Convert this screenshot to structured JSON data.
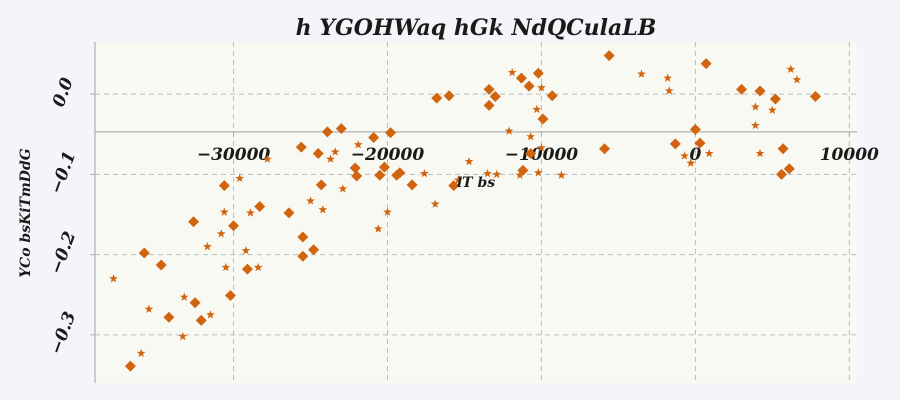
{
  "chart_data": {
    "type": "scatter",
    "title": "h YGOHWaq hGk NdQCulaLB",
    "xlabel": "lT bs",
    "ylabel": "YCo  bsKiTmDdG",
    "xlim": [
      -39000,
      10500
    ],
    "ylim": [
      -0.36,
      0.065
    ],
    "x_ticks": [
      -30000,
      -20000,
      -10000,
      0,
      10000
    ],
    "x_tick_labels": [
      "−30000",
      "−20000",
      "−10000",
      "0",
      "10000"
    ],
    "y_ticks": [
      0.0,
      -0.1,
      -0.2,
      -0.3
    ],
    "y_tick_labels": [
      "0.0",
      "−0.1",
      "−0.2",
      "−0.3"
    ],
    "grid": true,
    "colors": {
      "marker": "#d2640f",
      "plot_bg": "#f8f9f2",
      "page_bg": "#f4f5f9",
      "grid": "#bbbbbb",
      "axis": "#b0b0b0"
    },
    "series": [
      {
        "marker": "diamond",
        "points": [
          [
            -36700,
            -0.339
          ],
          [
            -35800,
            -0.198
          ],
          [
            -34700,
            -0.213
          ],
          [
            -34200,
            -0.278
          ],
          [
            -32600,
            -0.159
          ],
          [
            -32500,
            -0.26
          ],
          [
            -32100,
            -0.282
          ],
          [
            -30600,
            -0.114
          ],
          [
            -30200,
            -0.251
          ],
          [
            -30000,
            -0.164
          ],
          [
            -29100,
            -0.218
          ],
          [
            -28300,
            -0.14
          ],
          [
            -26400,
            -0.148
          ],
          [
            -25600,
            -0.066
          ],
          [
            -25500,
            -0.178
          ],
          [
            -25500,
            -0.202
          ],
          [
            -24800,
            -0.194
          ],
          [
            -24500,
            -0.074
          ],
          [
            -24300,
            -0.113
          ],
          [
            -23900,
            -0.047
          ],
          [
            -23000,
            -0.043
          ],
          [
            -22100,
            -0.092
          ],
          [
            -22000,
            -0.102
          ],
          [
            -20900,
            -0.054
          ],
          [
            -20500,
            -0.101
          ],
          [
            -20200,
            -0.091
          ],
          [
            -19800,
            -0.048
          ],
          [
            -19400,
            -0.101
          ],
          [
            -19200,
            -0.098
          ],
          [
            -18400,
            -0.113
          ],
          [
            -16800,
            -0.005
          ],
          [
            -16000,
            -0.002
          ],
          [
            -15700,
            -0.114
          ],
          [
            -13400,
            0.006
          ],
          [
            -13400,
            -0.014
          ],
          [
            -13000,
            -0.003
          ],
          [
            -11300,
            0.02
          ],
          [
            -10800,
            0.01
          ],
          [
            -11200,
            -0.095
          ],
          [
            -10700,
            -0.074
          ],
          [
            -10200,
            0.026
          ],
          [
            -9900,
            -0.031
          ],
          [
            -9300,
            -0.002
          ],
          [
            -5900,
            -0.068
          ],
          [
            -5600,
            0.048
          ],
          [
            -1300,
            -0.062
          ],
          [
            0,
            -0.044
          ],
          [
            300,
            -0.061
          ],
          [
            700,
            0.038
          ],
          [
            3000,
            0.006
          ],
          [
            4200,
            0.004
          ],
          [
            5200,
            -0.006
          ],
          [
            5600,
            -0.1
          ],
          [
            5700,
            -0.068
          ],
          [
            6100,
            -0.093
          ],
          [
            7800,
            -0.003
          ]
        ]
      },
      {
        "marker": "star",
        "points": [
          [
            -37800,
            -0.23
          ],
          [
            -36000,
            -0.323
          ],
          [
            -35500,
            -0.268
          ],
          [
            -33200,
            -0.253
          ],
          [
            -33300,
            -0.302
          ],
          [
            -31700,
            -0.19
          ],
          [
            -31500,
            -0.275
          ],
          [
            -30800,
            -0.174
          ],
          [
            -30600,
            -0.147
          ],
          [
            -30500,
            -0.216
          ],
          [
            -29600,
            -0.105
          ],
          [
            -29200,
            -0.195
          ],
          [
            -28900,
            -0.148
          ],
          [
            -28400,
            -0.216
          ],
          [
            -27800,
            -0.081
          ],
          [
            -25000,
            -0.133
          ],
          [
            -24200,
            -0.144
          ],
          [
            -23700,
            -0.081
          ],
          [
            -23400,
            -0.072
          ],
          [
            -22900,
            -0.118
          ],
          [
            -21900,
            -0.063
          ],
          [
            -20600,
            -0.168
          ],
          [
            -20000,
            -0.147
          ],
          [
            -17600,
            -0.099
          ],
          [
            -16900,
            -0.137
          ],
          [
            -15400,
            -0.107
          ],
          [
            -14700,
            -0.084
          ],
          [
            -13500,
            -0.099
          ],
          [
            -12900,
            -0.1
          ],
          [
            -12100,
            -0.046
          ],
          [
            -11900,
            0.027
          ],
          [
            -11400,
            -0.101
          ],
          [
            -10700,
            -0.053
          ],
          [
            -10300,
            -0.019
          ],
          [
            -10200,
            -0.098
          ],
          [
            -10000,
            0.008
          ],
          [
            -10000,
            -0.067
          ],
          [
            -8700,
            -0.101
          ],
          [
            -3500,
            0.025
          ],
          [
            -1800,
            0.02
          ],
          [
            -1700,
            0.004
          ],
          [
            -700,
            -0.077
          ],
          [
            -300,
            -0.086
          ],
          [
            900,
            -0.074
          ],
          [
            3900,
            -0.039
          ],
          [
            3900,
            -0.016
          ],
          [
            4200,
            -0.074
          ],
          [
            5000,
            -0.02
          ],
          [
            6200,
            0.031
          ],
          [
            6600,
            0.018
          ]
        ]
      }
    ]
  }
}
